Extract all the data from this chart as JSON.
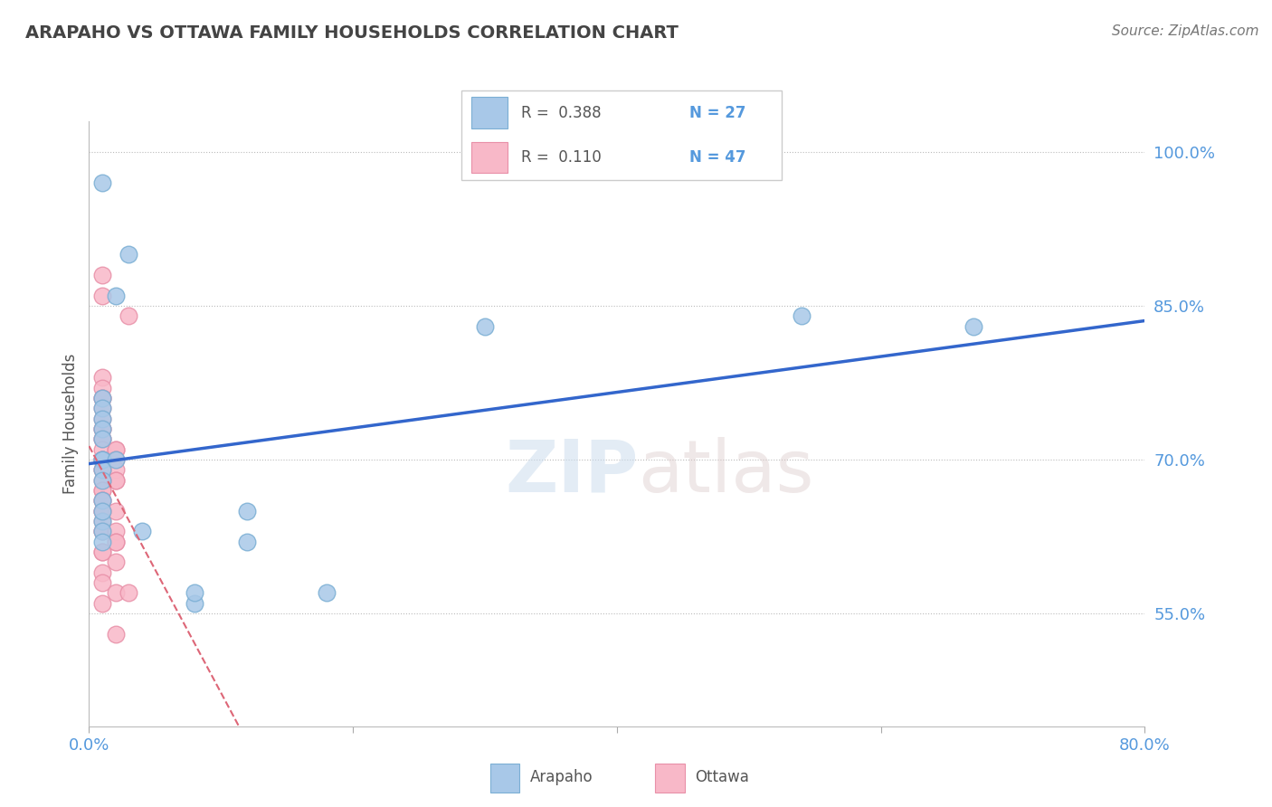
{
  "title": "ARAPAHO VS OTTAWA FAMILY HOUSEHOLDS CORRELATION CHART",
  "source_text": "Source: ZipAtlas.com",
  "ylabel": "Family Households",
  "xlim": [
    0.0,
    0.8
  ],
  "ylim": [
    0.44,
    1.03
  ],
  "yticks": [
    0.55,
    0.7,
    0.85,
    1.0
  ],
  "ytick_labels": [
    "55.0%",
    "70.0%",
    "85.0%",
    "100.0%"
  ],
  "xticks": [
    0.0,
    0.2,
    0.4,
    0.6,
    0.8
  ],
  "xtick_labels": [
    "0.0%",
    "",
    "",
    "",
    "80.0%"
  ],
  "legend_r_arapaho": "R =  0.388",
  "legend_n_arapaho": "N = 27",
  "legend_r_ottawa": "R =  0.110",
  "legend_n_ottawa": "N = 47",
  "arapaho_color": "#a8c8e8",
  "arapaho_edge_color": "#7bafd4",
  "ottawa_color": "#f8b8c8",
  "ottawa_edge_color": "#e890a8",
  "arapaho_line_color": "#3366cc",
  "ottawa_line_color": "#dd6677",
  "watermark_zip": "ZIP",
  "watermark_atlas": "atlas",
  "arapaho_x": [
    0.01,
    0.03,
    0.02,
    0.01,
    0.01,
    0.01,
    0.01,
    0.01,
    0.01,
    0.01,
    0.01,
    0.01,
    0.01,
    0.01,
    0.01,
    0.01,
    0.01,
    0.02,
    0.12,
    0.04,
    0.12,
    0.3,
    0.54,
    0.67,
    0.08,
    0.08,
    0.18
  ],
  "arapaho_y": [
    0.97,
    0.9,
    0.86,
    0.76,
    0.75,
    0.74,
    0.73,
    0.72,
    0.7,
    0.7,
    0.69,
    0.68,
    0.66,
    0.64,
    0.65,
    0.63,
    0.62,
    0.7,
    0.65,
    0.63,
    0.62,
    0.83,
    0.84,
    0.83,
    0.56,
    0.57,
    0.57
  ],
  "ottawa_x": [
    0.01,
    0.01,
    0.03,
    0.01,
    0.01,
    0.01,
    0.01,
    0.01,
    0.01,
    0.01,
    0.01,
    0.01,
    0.01,
    0.01,
    0.02,
    0.02,
    0.02,
    0.01,
    0.01,
    0.01,
    0.02,
    0.01,
    0.02,
    0.02,
    0.01,
    0.01,
    0.01,
    0.01,
    0.01,
    0.01,
    0.02,
    0.01,
    0.01,
    0.01,
    0.01,
    0.02,
    0.02,
    0.02,
    0.01,
    0.01,
    0.02,
    0.01,
    0.01,
    0.02,
    0.03,
    0.01,
    0.02
  ],
  "ottawa_y": [
    0.88,
    0.86,
    0.84,
    0.78,
    0.77,
    0.76,
    0.76,
    0.75,
    0.74,
    0.73,
    0.73,
    0.72,
    0.72,
    0.71,
    0.71,
    0.71,
    0.7,
    0.7,
    0.7,
    0.69,
    0.69,
    0.69,
    0.68,
    0.68,
    0.68,
    0.67,
    0.67,
    0.66,
    0.66,
    0.65,
    0.65,
    0.65,
    0.64,
    0.63,
    0.63,
    0.63,
    0.62,
    0.62,
    0.61,
    0.61,
    0.6,
    0.59,
    0.58,
    0.57,
    0.57,
    0.56,
    0.53
  ]
}
